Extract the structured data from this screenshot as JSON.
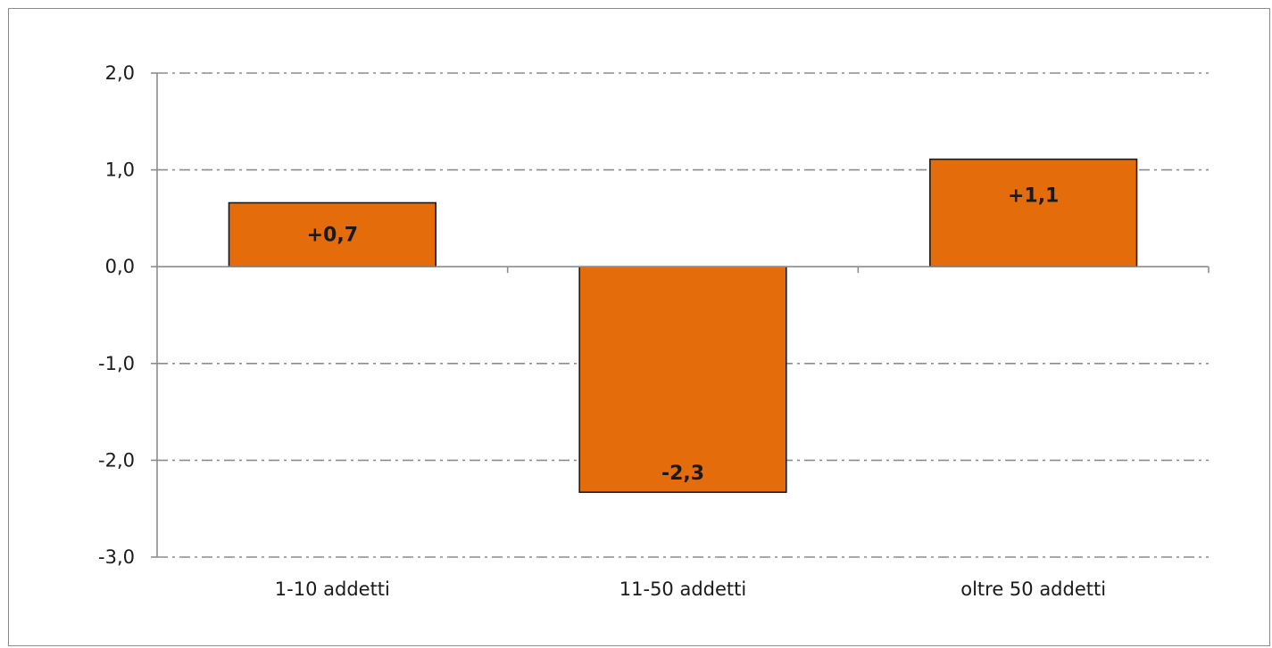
{
  "chart_data": {
    "type": "bar",
    "categories": [
      "1-10 addetti",
      "11-50 addetti",
      "oltre 50 addetti"
    ],
    "values": [
      0.66,
      -2.33,
      1.11
    ],
    "data_labels": [
      "+0,7",
      "-2,3",
      "+1,1"
    ],
    "title": "",
    "xlabel": "",
    "ylabel": "",
    "ylim": [
      -3.0,
      2.0
    ],
    "yticks": [
      2.0,
      1.0,
      0.0,
      -1.0,
      -2.0,
      -3.0
    ],
    "ytick_labels": [
      "2,0",
      "1,0",
      "0,0",
      "-1,0",
      "-2,0",
      "-3,0"
    ],
    "grid": true,
    "legend": "none",
    "colors": {
      "bar": "#e46c0a",
      "bar_stroke": "#1a1a1a",
      "grid": "#8c8c8c",
      "axis": "#8c8c8c"
    }
  }
}
